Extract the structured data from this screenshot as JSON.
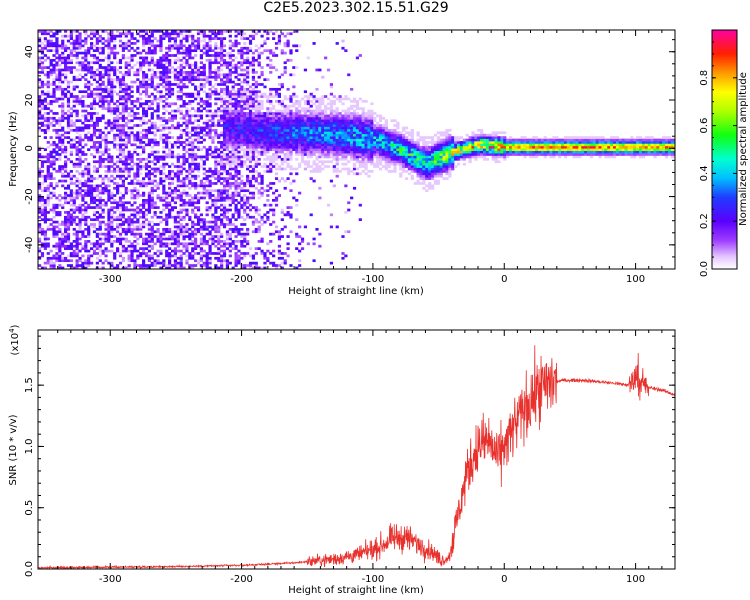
{
  "title": "C2E5.2023.302.15.51.G29",
  "chart_data": [
    {
      "type": "heatmap",
      "xlabel": "Height of straight line (km)",
      "ylabel": "Frequency (Hz)",
      "xlim": [
        -355,
        130
      ],
      "ylim": [
        -50,
        49
      ],
      "x_ticks": [
        -300,
        -200,
        -100,
        0,
        100
      ],
      "y_ticks": [
        -40,
        -20,
        0,
        20,
        40
      ],
      "x_tick_labels": [
        "-300",
        "-200",
        "-100",
        "0",
        "100"
      ],
      "y_tick_labels": [
        "-40",
        "-20",
        "0",
        "20",
        "40"
      ],
      "colorbar": {
        "label": "Normalized spectral amplitude",
        "range": [
          0,
          1
        ],
        "ticks": [
          0,
          0.2,
          0.4,
          0.6,
          0.8
        ],
        "tick_labels": [
          "0.0",
          "0.2",
          "0.4",
          "0.6",
          "0.8"
        ],
        "colormap": "rainbow"
      },
      "ridge": [
        {
          "x": -210,
          "f": 8,
          "amp": 0.25
        },
        {
          "x": -180,
          "f": 6,
          "amp": 0.3
        },
        {
          "x": -150,
          "f": 6,
          "amp": 0.35
        },
        {
          "x": -120,
          "f": 5,
          "amp": 0.4
        },
        {
          "x": -100,
          "f": 3,
          "amp": 0.45
        },
        {
          "x": -80,
          "f": -1,
          "amp": 0.5
        },
        {
          "x": -60,
          "f": -7,
          "amp": 0.55
        },
        {
          "x": -40,
          "f": -2,
          "amp": 0.7
        },
        {
          "x": -20,
          "f": 1,
          "amp": 0.8
        },
        {
          "x": 0,
          "f": 0,
          "amp": 0.9
        },
        {
          "x": 50,
          "f": 0,
          "amp": 0.92
        },
        {
          "x": 100,
          "f": 0,
          "amp": 0.9
        },
        {
          "x": 130,
          "f": 0,
          "amp": 0.88
        }
      ]
    },
    {
      "type": "line",
      "xlabel": "Height of straight line (km)",
      "ylabel": "SNR (10 * v/v)",
      "y_multiplier": "(x10",
      "y_multiplier_exp": "4",
      "y_multiplier_close": ")",
      "xlim": [
        -355,
        130
      ],
      "ylim": [
        0,
        1.95
      ],
      "x_ticks": [
        -300,
        -200,
        -100,
        0,
        100
      ],
      "y_ticks": [
        0.0,
        0.5,
        1.0,
        1.5
      ],
      "x_tick_labels": [
        "-300",
        "-200",
        "-100",
        "0",
        "100"
      ],
      "y_tick_labels": [
        "0.0",
        "0.5",
        "1.0",
        "1.5"
      ],
      "color": "#e8302c",
      "series": [
        {
          "x": [
            -355,
            -300,
            -250,
            -200,
            -160,
            -130,
            -110,
            -95,
            -85,
            -75,
            -65,
            -55,
            -48,
            -42,
            -35,
            -28,
            -20,
            -12,
            -5,
            5,
            15,
            25,
            35,
            45,
            60,
            80,
            95,
            100,
            104,
            110,
            120,
            130
          ],
          "y": [
            0.01,
            0.015,
            0.02,
            0.03,
            0.05,
            0.08,
            0.12,
            0.18,
            0.25,
            0.26,
            0.2,
            0.14,
            0.07,
            0.1,
            0.45,
            0.8,
            1.0,
            1.05,
            0.9,
            1.1,
            1.3,
            1.45,
            1.52,
            1.54,
            1.54,
            1.52,
            1.5,
            1.58,
            1.5,
            1.48,
            1.46,
            1.42
          ]
        }
      ]
    }
  ]
}
